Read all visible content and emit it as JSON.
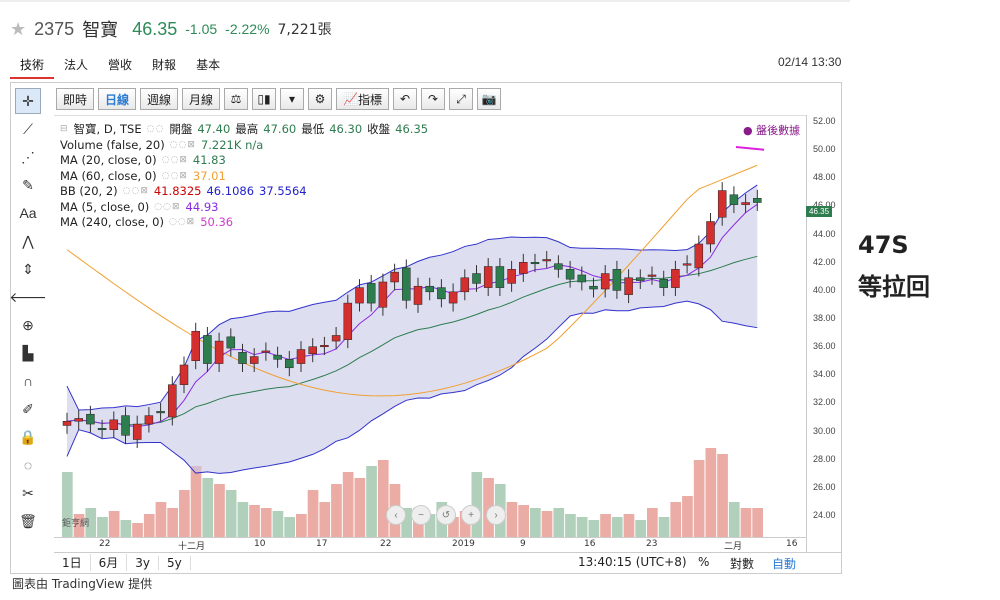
{
  "header": {
    "code": "2375",
    "name": "智寶",
    "price": "46.35",
    "change": "-1.05",
    "change_pct": "-2.22%",
    "volume": "7,221張"
  },
  "tabs": [
    "技術",
    "法人",
    "營收",
    "財報",
    "基本"
  ],
  "datetime": "02/14 13:30",
  "toolbar": {
    "periods": [
      "即時",
      "日線",
      "週線",
      "月線"
    ],
    "indicators_label": "指標"
  },
  "legend": {
    "main": {
      "title": "智寶, D, TSE",
      "open_l": "開盤",
      "open": "47.40",
      "high_l": "最高",
      "high": "47.60",
      "low_l": "最低",
      "low": "46.30",
      "close_l": "收盤",
      "close": "46.35"
    },
    "volume": {
      "label": "Volume (false, 20)",
      "value": "7.221K n/a"
    },
    "ma20": {
      "label": "MA (20, close, 0)",
      "value": "41.83"
    },
    "ma60": {
      "label": "MA (60, close, 0)",
      "value": "37.01"
    },
    "bb": {
      "label": "BB (20, 2)",
      "v1": "41.8325",
      "v2": "46.1086",
      "v3": "37.5564"
    },
    "ma5": {
      "label": "MA (5, close, 0)",
      "value": "44.93"
    },
    "ma240": {
      "label": "MA (240, close, 0)",
      "value": "50.36"
    }
  },
  "after_hours": "盤後數據",
  "last_price_label": "46.35",
  "bottom": {
    "ranges": [
      "1日",
      "6月",
      "3y",
      "5y"
    ],
    "clock": "13:40:15 (UTC+8)",
    "pct": "%",
    "log": "對數",
    "auto": "自動"
  },
  "watermark": "鉅亨網",
  "caption": "圖表由 TradingView 提供",
  "annotation": {
    "line1": "47S",
    "line2": "等拉回"
  },
  "colors": {
    "up": "#d32f2f",
    "down": "#2e7d4f",
    "bb_fill": "#c8c8e8",
    "ma20": "#2e7d4f",
    "ma60": "#f0a030",
    "ma5": "#8a2be2"
  },
  "chart_data": {
    "type": "candlestick",
    "y_ticks": [
      "24.00",
      "26.00",
      "28.00",
      "30.00",
      "32.00",
      "34.00",
      "36.00",
      "38.00",
      "40.00",
      "42.00",
      "44.00",
      "46.00",
      "48.00",
      "50.00",
      "52.00"
    ],
    "x_ticks": [
      "22",
      "十二月",
      "10",
      "17",
      "22",
      "2019",
      "9",
      "16",
      "23",
      "二月",
      "16"
    ],
    "ylim": [
      22.5,
      52.5
    ]
  }
}
